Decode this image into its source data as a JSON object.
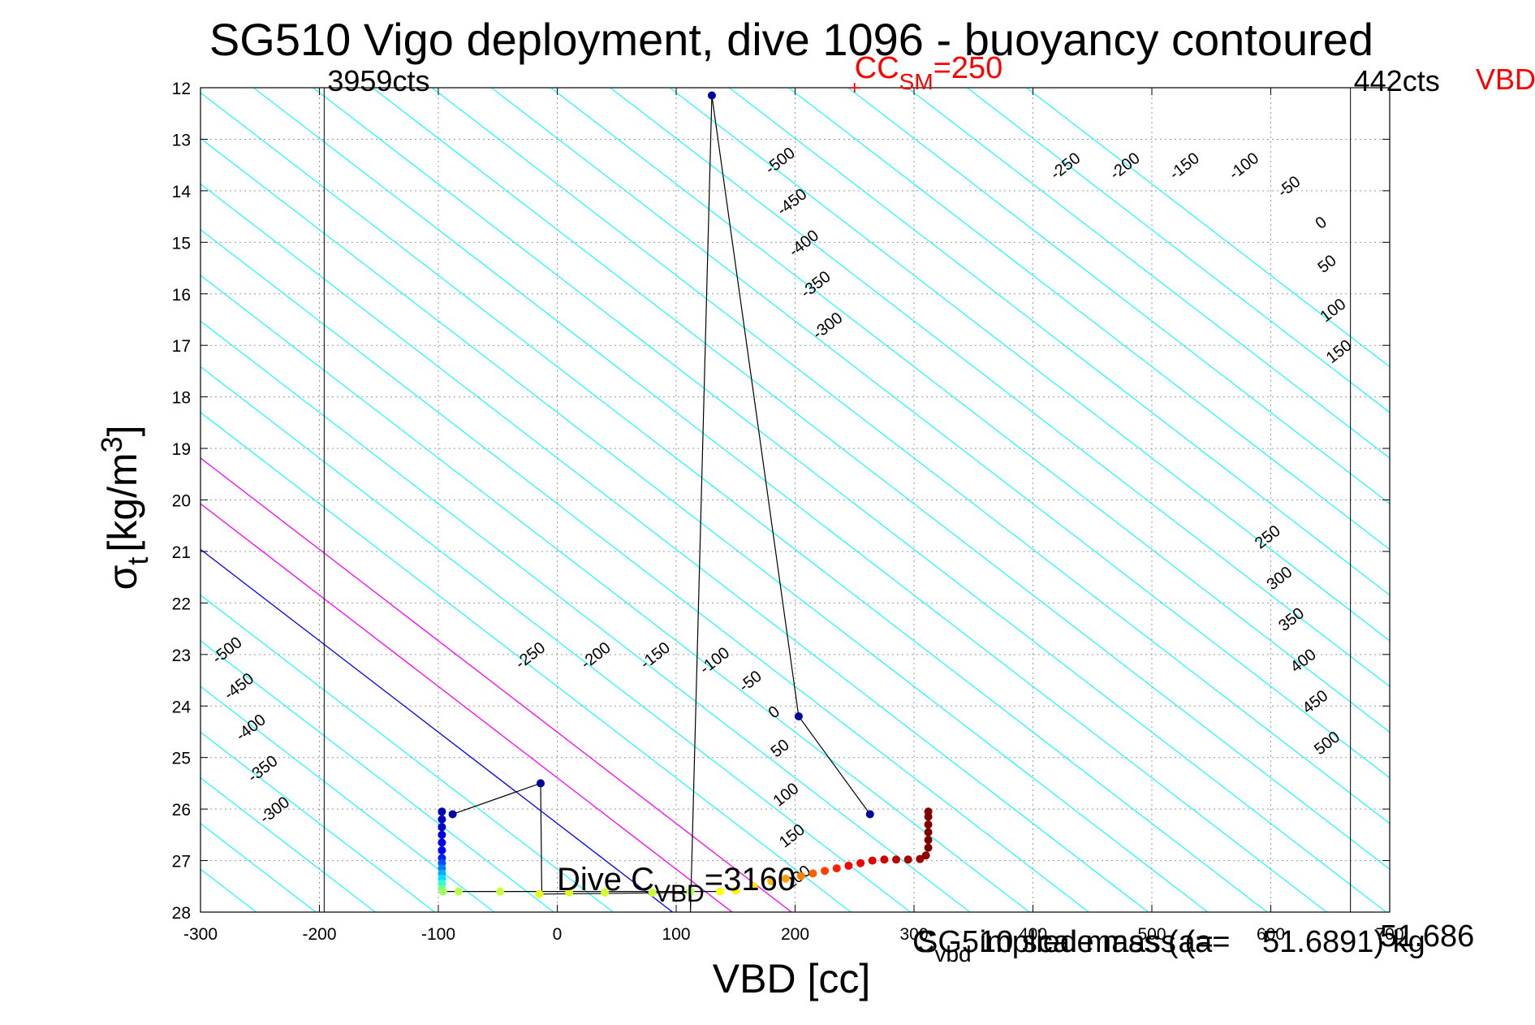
{
  "chart_data": {
    "type": "scatter",
    "title": "SG510 Vigo deployment, dive 1096 - buoyancy contoured",
    "xlabel": "VBD [cc]",
    "ylabel_main": "σ",
    "ylabel_sub": "t",
    "ylabel_units": "[kg/m",
    "ylabel_sup": "3",
    "ylabel_close": "]",
    "xlim": [
      -300,
      700
    ],
    "ylim": [
      12,
      28
    ],
    "y_reversed": true,
    "grid": true,
    "x_ticks": [
      -300,
      -200,
      -100,
      0,
      100,
      200,
      300,
      400,
      500,
      600,
      700
    ],
    "x_tick_labels": [
      "-300",
      "-200",
      "-100",
      "0",
      "100",
      "200",
      "300",
      "400",
      "500",
      "600",
      "700"
    ],
    "y_ticks": [
      12,
      13,
      14,
      15,
      16,
      17,
      18,
      19,
      20,
      21,
      22,
      23,
      24,
      25,
      26,
      27,
      28
    ],
    "y_tick_labels": [
      "12",
      "13",
      "14",
      "15",
      "16",
      "17",
      "18",
      "19",
      "20",
      "21",
      "22",
      "23",
      "24",
      "25",
      "26",
      "27",
      "28"
    ],
    "vbd_limits": {
      "min_x": -196,
      "max_x": 667,
      "min_label": "3959cts",
      "max_label": "442cts",
      "side_label": "VBD"
    },
    "cc_sm": {
      "x": 250,
      "y": 12,
      "label_main": "CC",
      "label_sub": "SM",
      "label_tail": "=250",
      "color": "#ff0000"
    },
    "dive_label": {
      "text_main": "Dive C",
      "text_sub": "VBD",
      "text_tail": "=3160"
    },
    "bottom_overlap_text": {
      "part1_main": "C",
      "part1_sub": "vbd",
      "part2": "implied mass (a=",
      "part3": "SG510 scale mass (a=",
      "part4": "51.686",
      "part5": "51.6891) kg"
    },
    "contours": {
      "color_minor": "#00ffff",
      "color_zero": "#0000ff",
      "color_positive": "#ff00ff",
      "zero_line": {
        "x0": 97,
        "y0": 28,
        "slope_cc_per_sigma": 56.4
      },
      "spacing_cc": 50,
      "count_each_side": 12
    },
    "contour_labels": [
      {
        "text": "-500",
        "x": 190,
        "y": 13.5
      },
      {
        "text": "-450",
        "x": 200,
        "y": 14.3
      },
      {
        "text": "-400",
        "x": 210,
        "y": 15.1
      },
      {
        "text": "-350",
        "x": 220,
        "y": 15.9
      },
      {
        "text": "-300",
        "x": 230,
        "y": 16.7
      },
      {
        "text": "-250",
        "x": 430,
        "y": 13.6
      },
      {
        "text": "-200",
        "x": 480,
        "y": 13.6
      },
      {
        "text": "-150",
        "x": 530,
        "y": 13.6
      },
      {
        "text": "-100",
        "x": 580,
        "y": 13.6
      },
      {
        "text": "-50",
        "x": 618,
        "y": 14.0
      },
      {
        "text": "0",
        "x": 645,
        "y": 14.7
      },
      {
        "text": "50",
        "x": 650,
        "y": 15.5
      },
      {
        "text": "100",
        "x": 655,
        "y": 16.4
      },
      {
        "text": "150",
        "x": 660,
        "y": 17.2
      },
      {
        "text": "-500",
        "x": -275,
        "y": 23.0
      },
      {
        "text": "-450",
        "x": -265,
        "y": 23.7
      },
      {
        "text": "-400",
        "x": -255,
        "y": 24.5
      },
      {
        "text": "-350",
        "x": -245,
        "y": 25.3
      },
      {
        "text": "-300",
        "x": -235,
        "y": 26.1
      },
      {
        "text": "-250",
        "x": -20,
        "y": 23.1
      },
      {
        "text": "-200",
        "x": 35,
        "y": 23.1
      },
      {
        "text": "-150",
        "x": 85,
        "y": 23.1
      },
      {
        "text": "-100",
        "x": 135,
        "y": 23.2
      },
      {
        "text": "-50",
        "x": 165,
        "y": 23.6
      },
      {
        "text": "0",
        "x": 185,
        "y": 24.2
      },
      {
        "text": "50",
        "x": 190,
        "y": 24.9
      },
      {
        "text": "100",
        "x": 195,
        "y": 25.8
      },
      {
        "text": "150",
        "x": 200,
        "y": 26.6
      },
      {
        "text": "200",
        "x": 205,
        "y": 27.4
      },
      {
        "text": "250",
        "x": 600,
        "y": 20.8
      },
      {
        "text": "300",
        "x": 610,
        "y": 21.6
      },
      {
        "text": "350",
        "x": 620,
        "y": 22.4
      },
      {
        "text": "400",
        "x": 630,
        "y": 23.2
      },
      {
        "text": "450",
        "x": 640,
        "y": 24.0
      },
      {
        "text": "500",
        "x": 650,
        "y": 24.8
      }
    ],
    "series": [
      {
        "points": [
          {
            "x": 263,
            "y": 26.1,
            "c": "#00009f"
          },
          {
            "x": 203,
            "y": 24.2,
            "c": "#00009f"
          },
          {
            "x": 130,
            "y": 12.15,
            "c": "#00009f"
          },
          {
            "x": 112,
            "y": 27.6,
            "c": "#b4ff4a"
          },
          {
            "x": 80,
            "y": 27.62,
            "c": "#c8ff36"
          },
          {
            "x": 40,
            "y": 27.62,
            "c": "#d2ff2c"
          },
          {
            "x": 10,
            "y": 27.62,
            "c": "#dcff22"
          },
          {
            "x": -15,
            "y": 27.65,
            "c": "#e6ff18"
          },
          {
            "x": -14,
            "y": 25.5,
            "c": "#00009f"
          },
          {
            "x": -88,
            "y": 26.1,
            "c": "#0000af"
          },
          {
            "x": -97,
            "y": 26.05,
            "c": "#0000af"
          },
          {
            "x": -97,
            "y": 26.2,
            "c": "#0000bf"
          },
          {
            "x": -97,
            "y": 26.35,
            "c": "#0000cf"
          },
          {
            "x": -97,
            "y": 26.5,
            "c": "#0000df"
          },
          {
            "x": -97,
            "y": 26.65,
            "c": "#0000ef"
          },
          {
            "x": -97,
            "y": 26.8,
            "c": "#0000ff"
          },
          {
            "x": -97,
            "y": 26.95,
            "c": "#0020ff"
          },
          {
            "x": -97,
            "y": 27.05,
            "c": "#0050ff"
          },
          {
            "x": -97,
            "y": 27.15,
            "c": "#0080ff"
          },
          {
            "x": -97,
            "y": 27.25,
            "c": "#00b0ff"
          },
          {
            "x": -97,
            "y": 27.35,
            "c": "#00e0ff"
          },
          {
            "x": -97,
            "y": 27.45,
            "c": "#30ffcf"
          },
          {
            "x": -97,
            "y": 27.55,
            "c": "#70ff8f"
          },
          {
            "x": -96,
            "y": 27.6,
            "c": "#a0ff5f"
          },
          {
            "x": -83,
            "y": 27.6,
            "c": "#b8ff47"
          },
          {
            "x": -48,
            "y": 27.6,
            "c": "#c8ff37"
          },
          {
            "x": 137,
            "y": 27.6,
            "c": "#ffff00"
          },
          {
            "x": 150,
            "y": 27.58,
            "c": "#fff000"
          },
          {
            "x": 165,
            "y": 27.5,
            "c": "#ffe000"
          },
          {
            "x": 180,
            "y": 27.4,
            "c": "#ffc000"
          },
          {
            "x": 192,
            "y": 27.35,
            "c": "#ffa000"
          },
          {
            "x": 205,
            "y": 27.3,
            "c": "#ff8000"
          },
          {
            "x": 215,
            "y": 27.25,
            "c": "#ff6000"
          },
          {
            "x": 225,
            "y": 27.2,
            "c": "#ff4000"
          },
          {
            "x": 235,
            "y": 27.15,
            "c": "#ff2000"
          },
          {
            "x": 245,
            "y": 27.1,
            "c": "#ff0000"
          },
          {
            "x": 255,
            "y": 27.05,
            "c": "#ef0000"
          },
          {
            "x": 265,
            "y": 27.0,
            "c": "#df0000"
          },
          {
            "x": 275,
            "y": 26.98,
            "c": "#cf0000"
          },
          {
            "x": 285,
            "y": 26.98,
            "c": "#bf0000"
          },
          {
            "x": 295,
            "y": 26.98,
            "c": "#af0000"
          },
          {
            "x": 305,
            "y": 26.97,
            "c": "#9f0000"
          },
          {
            "x": 310,
            "y": 26.9,
            "c": "#8f0000"
          },
          {
            "x": 312,
            "y": 26.75,
            "c": "#800000"
          },
          {
            "x": 312,
            "y": 26.6,
            "c": "#800000"
          },
          {
            "x": 312,
            "y": 26.45,
            "c": "#800000"
          },
          {
            "x": 312,
            "y": 26.3,
            "c": "#800000"
          },
          {
            "x": 312,
            "y": 26.15,
            "c": "#800000"
          },
          {
            "x": 312,
            "y": 26.05,
            "c": "#800000"
          }
        ]
      }
    ],
    "trace_path": [
      {
        "x": 263,
        "y": 26.1
      },
      {
        "x": 203,
        "y": 24.2
      },
      {
        "x": 130,
        "y": 12.15
      },
      {
        "x": 112,
        "y": 28.0
      },
      {
        "x": 112,
        "y": 27.62
      },
      {
        "x": -13,
        "y": 27.65
      },
      {
        "x": -14,
        "y": 25.5
      },
      {
        "x": -88,
        "y": 26.1
      }
    ],
    "trace_path_2": [
      {
        "x": -97,
        "y": 27.6
      },
      {
        "x": 137,
        "y": 27.6
      }
    ]
  }
}
